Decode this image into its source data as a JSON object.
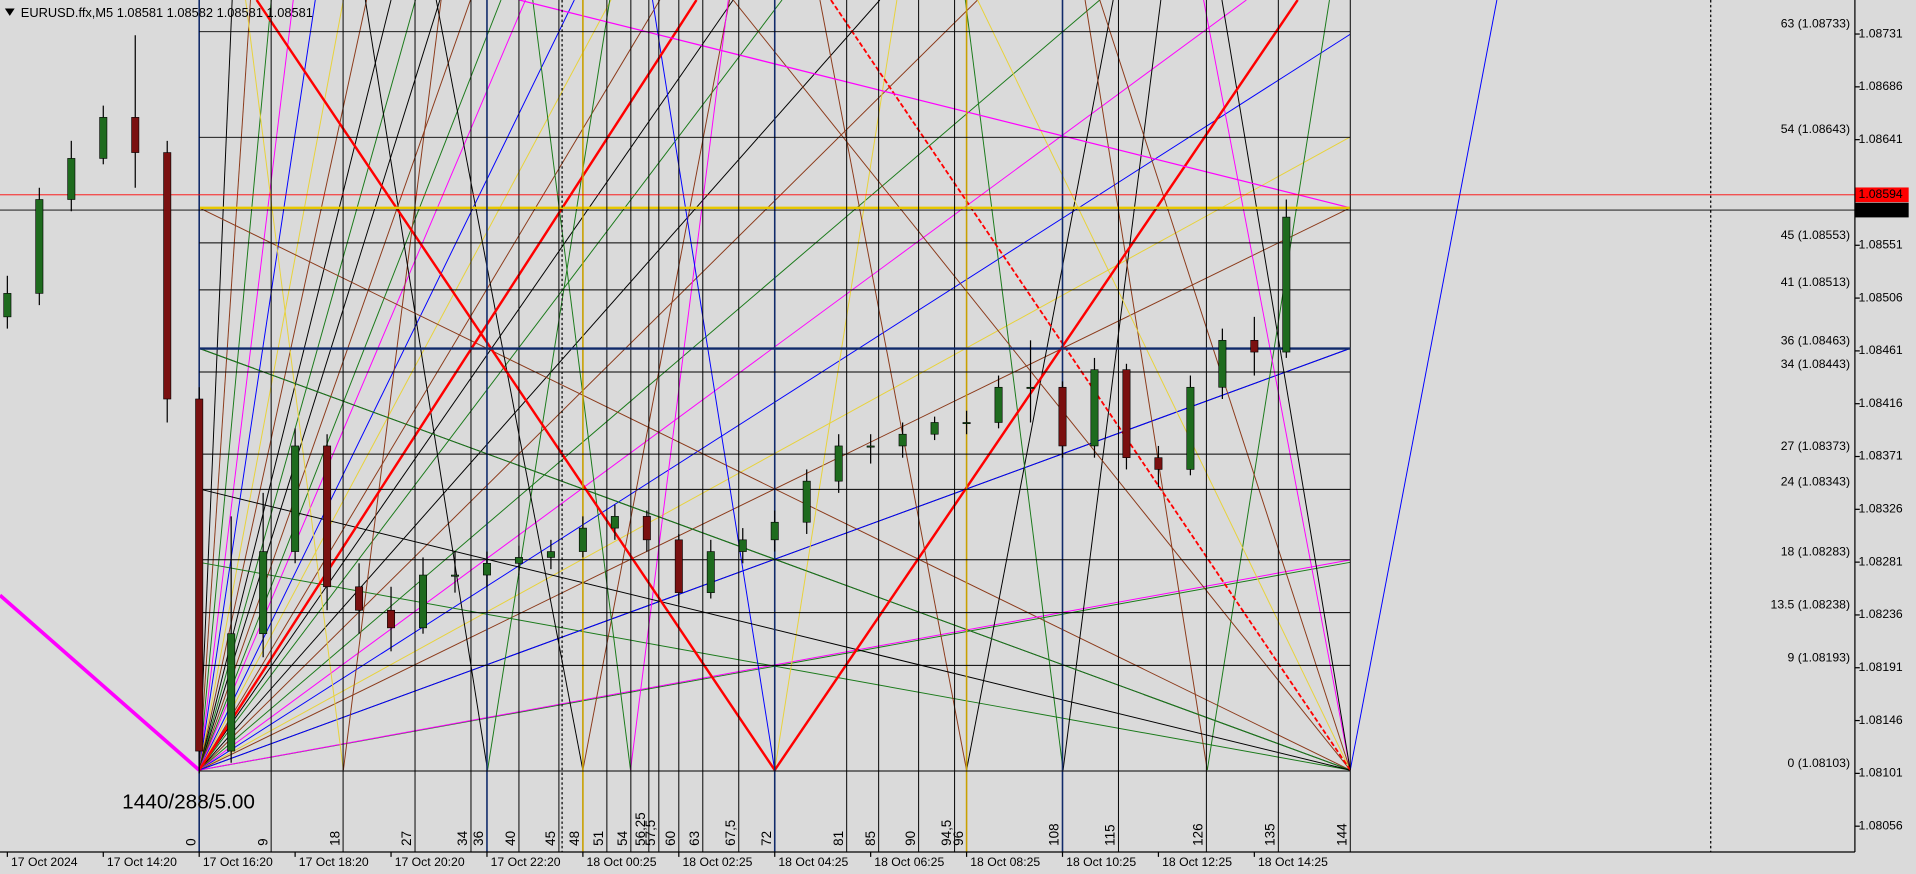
{
  "chart_data": {
    "type": "candlestick",
    "header": "EURUSD.ffx,M5  1.08581 1.08582 1.08581 1.08581",
    "annotation": "1440/288/5.00",
    "up_color": "#1e6b1e",
    "down_color": "#7a1010",
    "xlim": [
      -24.92,
      207.13
    ],
    "ylim": [
      1.08034,
      1.0876
    ],
    "yticks": [
      1.08731,
      1.08686,
      1.08641,
      1.08551,
      1.08506,
      1.08461,
      1.08416,
      1.08371,
      1.08326,
      1.08281,
      1.08236,
      1.08191,
      1.08146,
      1.08101,
      1.08056
    ],
    "xticks": [
      {
        "value": -24,
        "label": "17 Oct 2024"
      },
      {
        "value": -12,
        "label": "17 Oct 14:20"
      },
      {
        "value": 0,
        "label": "17 Oct 16:20"
      },
      {
        "value": 12,
        "label": "17 Oct 18:20"
      },
      {
        "value": 24,
        "label": "17 Oct 20:20"
      },
      {
        "value": 36,
        "label": "17 Oct 22:20"
      },
      {
        "value": 48,
        "label": "18 Oct 00:25"
      },
      {
        "value": 60,
        "label": "18 Oct 02:25"
      },
      {
        "value": 72,
        "label": "18 Oct 04:25"
      },
      {
        "value": 84,
        "label": "18 Oct 06:25"
      },
      {
        "value": 96,
        "label": "18 Oct 08:25"
      },
      {
        "value": 108,
        "label": "18 Oct 10:25"
      },
      {
        "value": 120,
        "label": "18 Oct 12:25"
      },
      {
        "value": 132,
        "label": "18 Oct 14:25"
      }
    ],
    "gann_counts": [
      0,
      9,
      18,
      27,
      34,
      36,
      40,
      45,
      48,
      51,
      54,
      {
        "value": 56.25,
        "label": "56,25"
      },
      {
        "value": 57.5,
        "label": "57,5"
      },
      60,
      63,
      {
        "value": 67.5,
        "label": "67,5"
      },
      72,
      81,
      85,
      90,
      {
        "value": 94.5,
        "label": "94,5"
      },
      96,
      108,
      115,
      126,
      135,
      144
    ],
    "levels": [
      {
        "value": 1.08733,
        "label": "63 (1.08733)"
      },
      {
        "value": 1.08643,
        "label": "54 (1.08643)"
      },
      {
        "value": 1.08553,
        "label": "45 (1.08553)"
      },
      {
        "value": 1.08513,
        "label": "41 (1.08513)"
      },
      {
        "value": 1.08463,
        "label": "36 (1.08463)"
      },
      {
        "value": 1.08443,
        "label": "34 (1.08443)"
      },
      {
        "value": 1.08373,
        "label": "27 (1.08373)"
      },
      {
        "value": 1.08343,
        "label": "24 (1.08343)"
      },
      {
        "value": 1.08283,
        "label": "18 (1.08283)"
      },
      {
        "value": 1.08238,
        "label": "13.5 (1.08238)"
      },
      {
        "value": 1.08193,
        "label": "9 (1.08193)"
      },
      {
        "value": 1.08103,
        "label": "0 (1.08103)"
      }
    ],
    "price_lines": [
      {
        "value": 1.08594,
        "color": "#ff0000"
      },
      {
        "value": 1.08581,
        "color": "#000000"
      }
    ],
    "x": [
      -24,
      -20,
      -16,
      -12,
      -8,
      -4,
      0,
      4,
      8,
      12,
      16,
      20,
      24,
      28,
      32,
      36,
      40,
      44,
      48,
      52,
      56,
      60,
      64,
      68,
      72,
      76,
      80,
      84,
      88,
      92,
      96,
      100,
      104,
      108,
      112,
      116,
      120,
      124,
      128,
      132,
      136
    ],
    "open": [
      1.0849,
      1.0851,
      1.0859,
      1.08625,
      1.0866,
      1.0863,
      1.0842,
      1.0812,
      1.0822,
      1.0829,
      1.0838,
      1.0826,
      1.0824,
      1.08225,
      1.0827,
      1.0827,
      1.0828,
      1.08285,
      1.0829,
      1.0831,
      1.0832,
      1.083,
      1.08255,
      1.0829,
      1.083,
      1.08315,
      1.0835,
      1.0838,
      1.0838,
      1.0839,
      1.084,
      1.084,
      1.0843,
      1.0843,
      1.0838,
      1.08445,
      1.0837,
      1.0836,
      1.0843,
      1.0847,
      1.0846
    ],
    "high": [
      1.08525,
      1.086,
      1.0864,
      1.0867,
      1.0873,
      1.0864,
      1.0843,
      1.0832,
      1.0834,
      1.08395,
      1.0839,
      1.0828,
      1.0826,
      1.08285,
      1.0829,
      1.0829,
      1.08295,
      1.083,
      1.0832,
      1.0833,
      1.08325,
      1.08305,
      1.083,
      1.0831,
      1.08325,
      1.0836,
      1.0839,
      1.0839,
      1.084,
      1.08405,
      1.0841,
      1.0844,
      1.0847,
      1.08435,
      1.08455,
      1.0845,
      1.0838,
      1.0844,
      1.0848,
      1.0849,
      1.0859
    ],
    "low": [
      1.0848,
      1.085,
      1.0858,
      1.0862,
      1.086,
      1.084,
      1.08101,
      1.0811,
      1.082,
      1.0828,
      1.0824,
      1.0822,
      1.08205,
      1.0822,
      1.08255,
      1.0826,
      1.0827,
      1.08275,
      1.08285,
      1.083,
      1.0829,
      1.08245,
      1.0825,
      1.0828,
      1.0829,
      1.08305,
      1.0834,
      1.08365,
      1.0837,
      1.08385,
      1.0839,
      1.08395,
      1.084,
      1.0837,
      1.0837,
      1.0836,
      1.08345,
      1.08355,
      1.0842,
      1.0844,
      1.08455
    ],
    "close": [
      1.0851,
      1.0859,
      1.08625,
      1.0866,
      1.0863,
      1.0842,
      1.0812,
      1.0822,
      1.0829,
      1.0838,
      1.0826,
      1.0824,
      1.08225,
      1.0827,
      1.0827,
      1.0828,
      1.08285,
      1.0829,
      1.0831,
      1.0832,
      1.083,
      1.08255,
      1.0829,
      1.083,
      1.08315,
      1.0835,
      1.0838,
      1.0838,
      1.0839,
      1.084,
      1.084,
      1.0843,
      1.0843,
      1.0838,
      1.08445,
      1.0837,
      1.0836,
      1.0843,
      1.0847,
      1.0846,
      1.08575
    ]
  }
}
